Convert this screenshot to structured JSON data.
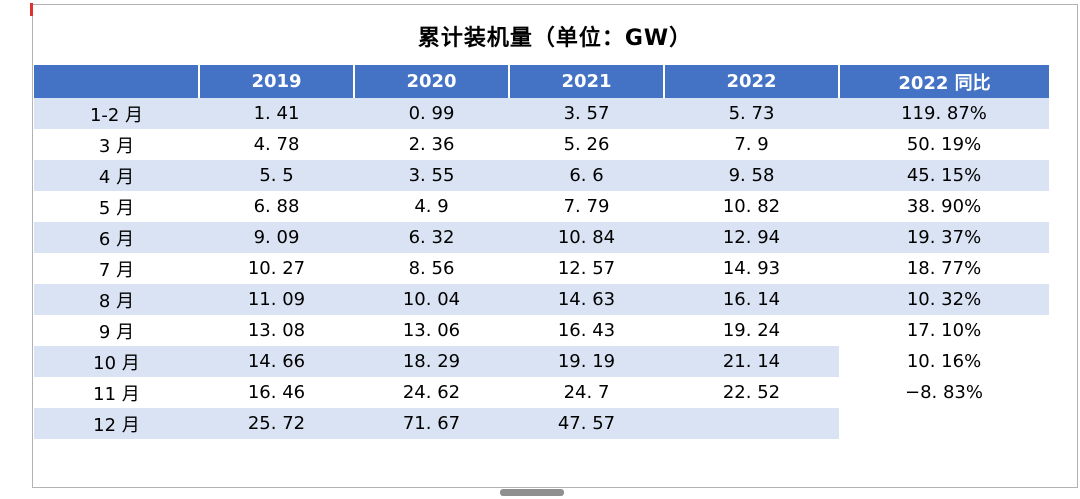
{
  "page": {
    "title": "累计装机量（单位：GW）"
  },
  "colors": {
    "header_bg": "#4472C4",
    "header_text": "#FFFFFF",
    "band_bg": "#DAE3F3",
    "body_text": "#000000",
    "cursor_mark": "#E03131"
  },
  "table": {
    "headers": [
      "",
      "2019",
      "2020",
      "2021",
      "2022",
      "2022 同比"
    ],
    "rows": [
      {
        "cells": [
          "1-2 月",
          "1. 41",
          "0. 99",
          "3. 57",
          "5. 73",
          "119. 87%"
        ]
      },
      {
        "cells": [
          "3 月",
          "4. 78",
          "2. 36",
          "5. 26",
          "7. 9",
          "50. 19%"
        ]
      },
      {
        "cells": [
          "4 月",
          "5. 5",
          "3. 55",
          "6. 6",
          "9. 58",
          "45. 15%"
        ]
      },
      {
        "cells": [
          "5 月",
          "6. 88",
          "4. 9",
          "7. 79",
          "10. 82",
          "38. 90%"
        ]
      },
      {
        "cells": [
          "6 月",
          "9. 09",
          "6. 32",
          "10. 84",
          "12. 94",
          "19. 37%"
        ]
      },
      {
        "cells": [
          "7 月",
          "10. 27",
          "8. 56",
          "12. 57",
          "14. 93",
          "18. 77%"
        ]
      },
      {
        "cells": [
          "8 月",
          "11. 09",
          "10. 04",
          "14. 63",
          "16. 14",
          "10. 32%"
        ]
      },
      {
        "cells": [
          "9 月",
          "13. 08",
          "13. 06",
          "16. 43",
          "19. 24",
          "17. 10%"
        ]
      },
      {
        "cells": [
          "10 月",
          "14. 66",
          "18. 29",
          "19. 19",
          "21. 14",
          "10. 16%"
        ]
      },
      {
        "cells": [
          "11 月",
          "16. 46",
          "24. 62",
          "24. 7",
          "22. 52",
          "−8. 83%"
        ]
      },
      {
        "cells": [
          "12 月",
          "25. 72",
          "71. 67",
          "47. 57",
          "",
          ""
        ]
      }
    ]
  },
  "chart_data": {
    "type": "table",
    "title": "累计装机量（单位：GW）",
    "unit": "GW",
    "row_labels": [
      "1-2月",
      "3月",
      "4月",
      "5月",
      "6月",
      "7月",
      "8月",
      "9月",
      "10月",
      "11月",
      "12月"
    ],
    "series": [
      {
        "name": "2019",
        "values": [
          1.41,
          4.78,
          5.5,
          6.88,
          9.09,
          10.27,
          11.09,
          13.08,
          14.66,
          16.46,
          25.72
        ]
      },
      {
        "name": "2020",
        "values": [
          0.99,
          2.36,
          3.55,
          4.9,
          6.32,
          8.56,
          10.04,
          13.06,
          18.29,
          24.62,
          71.67
        ]
      },
      {
        "name": "2021",
        "values": [
          3.57,
          5.26,
          6.6,
          7.79,
          10.84,
          12.57,
          14.63,
          16.43,
          19.19,
          24.7,
          47.57
        ]
      },
      {
        "name": "2022",
        "values": [
          5.73,
          7.9,
          9.58,
          10.82,
          12.94,
          14.93,
          16.14,
          19.24,
          21.14,
          22.52,
          null
        ]
      },
      {
        "name": "2022 同比 (%)",
        "values": [
          119.87,
          50.19,
          45.15,
          38.9,
          19.37,
          18.77,
          10.32,
          17.1,
          10.16,
          -8.83,
          null
        ]
      }
    ],
    "layout": {
      "banded_rows": true,
      "header_fill": "#4472C4",
      "band_fill": "#DAE3F3"
    }
  }
}
